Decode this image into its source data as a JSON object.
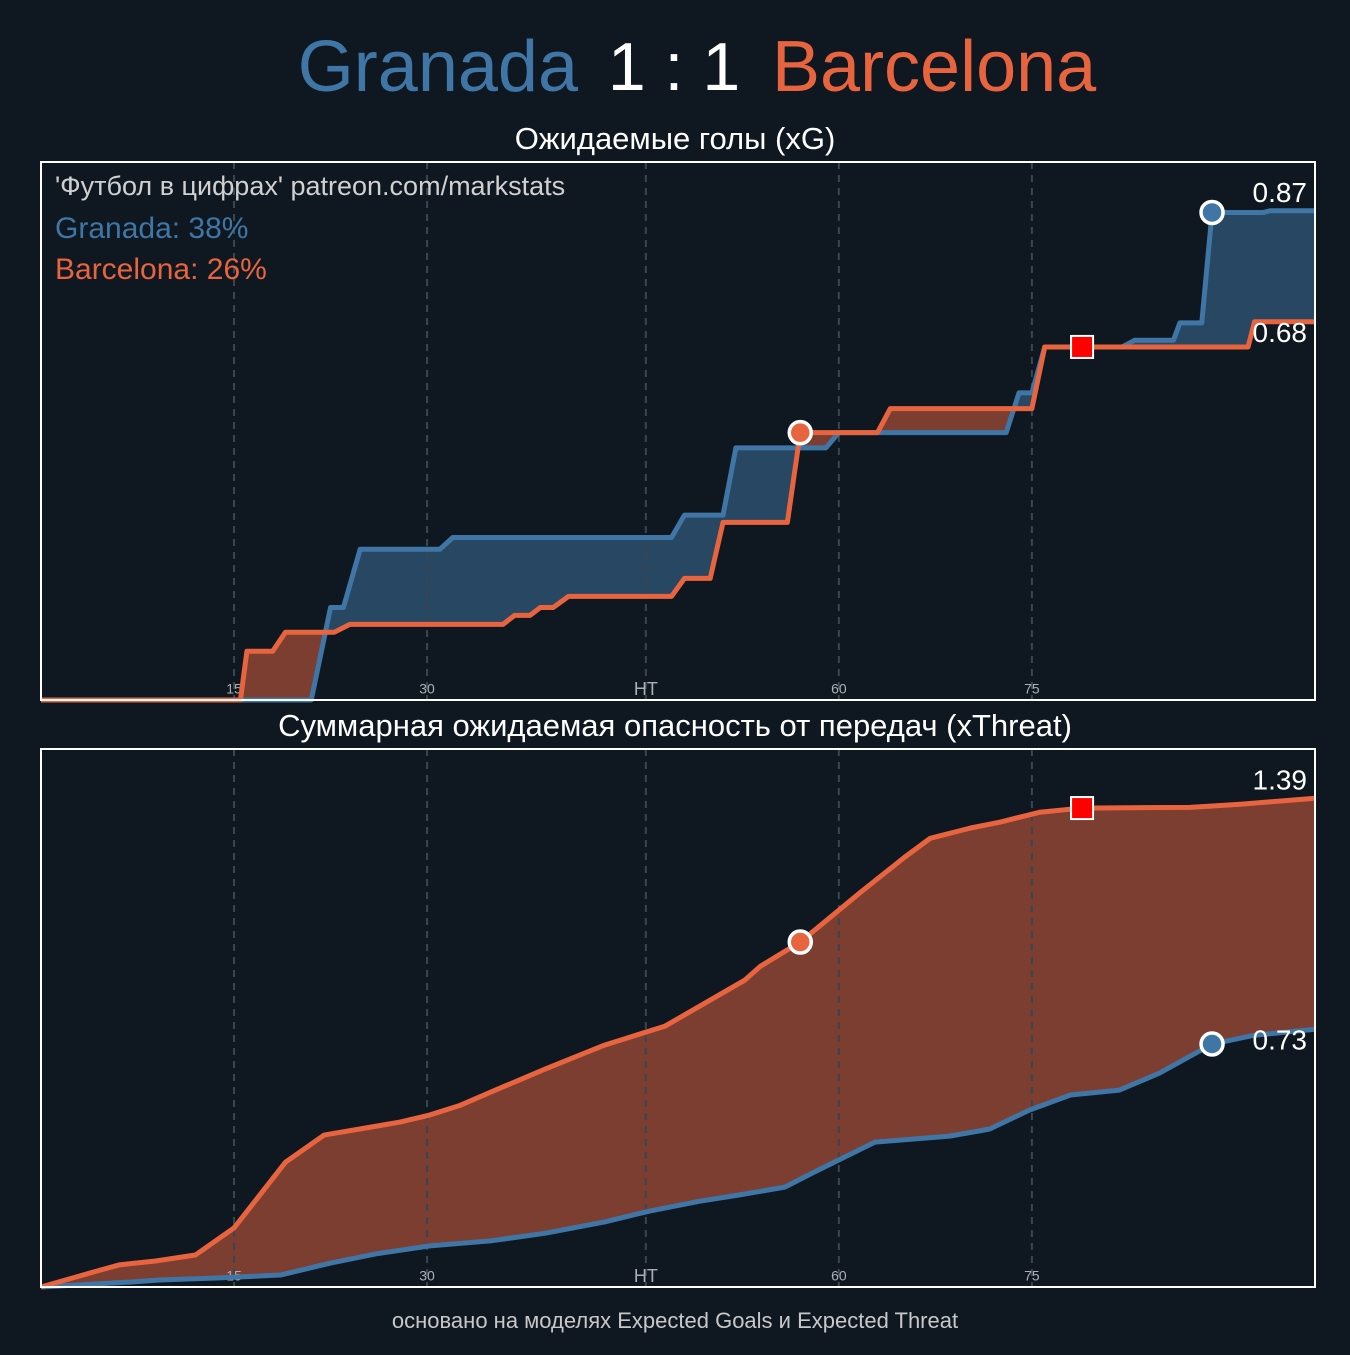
{
  "header": {
    "home": "Granada",
    "score": "1 : 1",
    "away": "Barcelona"
  },
  "footer": "основано на моделях Expected Goals и Expected Threat",
  "chart_data": [
    {
      "type": "line",
      "title": "Ожидаемые голы (xG)",
      "annotation": "'Футбол в цифрах' patreon.com/markstats",
      "xlim": [
        0,
        99
      ],
      "ylim": [
        0,
        0.96
      ],
      "xticks": [
        15,
        30,
        {
          "value": 47,
          "label": "HT"
        },
        {
          "value": 62,
          "label": "60"
        },
        {
          "value": 77,
          "label": "75"
        }
      ],
      "grid": true,
      "fill_between": true,
      "series": [
        {
          "label": "Granada: 38%",
          "color": "#3f76a6",
          "end_label": "0.87",
          "x": [
            0,
            21,
            22.5,
            23.5,
            24.8,
            31,
            32,
            49,
            50,
            53,
            54,
            61,
            62,
            75,
            76,
            77,
            78,
            84,
            85,
            88,
            88.5,
            90.2,
            91,
            95,
            95.5,
            99
          ],
          "values": [
            0,
            0,
            0.165,
            0.165,
            0.269,
            0.269,
            0.29,
            0.29,
            0.33,
            0.33,
            0.45,
            0.45,
            0.477,
            0.477,
            0.548,
            0.548,
            0.63,
            0.63,
            0.642,
            0.642,
            0.673,
            0.673,
            0.87,
            0.87,
            0.873,
            0.873
          ]
        },
        {
          "label": "Barcelona: 26%",
          "color": "#e8643f",
          "end_label": "0.68",
          "x": [
            0,
            15.5,
            16,
            18,
            19,
            22.8,
            24,
            35.9,
            36.8,
            38,
            38.8,
            39.8,
            41,
            49,
            50,
            52,
            53,
            58,
            59,
            65,
            66,
            77,
            78,
            93.8,
            94.3,
            99
          ],
          "values": [
            0,
            0,
            0.087,
            0.087,
            0.121,
            0.121,
            0.135,
            0.135,
            0.151,
            0.151,
            0.165,
            0.165,
            0.185,
            0.185,
            0.217,
            0.217,
            0.317,
            0.317,
            0.477,
            0.477,
            0.52,
            0.52,
            0.63,
            0.63,
            0.675,
            0.675
          ]
        }
      ],
      "events": [
        {
          "x": 59,
          "series": 1,
          "shape": "circle"
        },
        {
          "x": 80.9,
          "series": 1,
          "shape": "square",
          "color": "#ff0000"
        },
        {
          "x": 91,
          "series": 0,
          "shape": "circle"
        }
      ]
    },
    {
      "type": "line",
      "title": "Суммарная ожидаемая опасность от передач (xThreat)",
      "xlim": [
        0,
        99
      ],
      "ylim": [
        0,
        1.53
      ],
      "xticks": [
        15,
        30,
        {
          "value": 47,
          "label": "HT"
        },
        {
          "value": 62,
          "label": "60"
        },
        {
          "value": 77,
          "label": "75"
        }
      ],
      "grid": true,
      "fill_between": true,
      "series": [
        {
          "color": "#3f76a6",
          "end_label": "0.73",
          "x": [
            0,
            6.9,
            9.2,
            13.9,
            18.6,
            22.5,
            26,
            30.2,
            34.9,
            39.2,
            43.8,
            47.3,
            51.2,
            54.3,
            57.8,
            60.1,
            64.8,
            70.6,
            73.7,
            76.8,
            80,
            83.8,
            86.9,
            91,
            94.3,
            99
          ],
          "values": [
            0,
            0.014,
            0.02,
            0.026,
            0.034,
            0.068,
            0.094,
            0.117,
            0.131,
            0.153,
            0.185,
            0.216,
            0.244,
            0.262,
            0.284,
            0.327,
            0.412,
            0.429,
            0.449,
            0.503,
            0.546,
            0.56,
            0.608,
            0.691,
            0.716,
            0.733
          ]
        },
        {
          "color": "#e8643f",
          "end_label": "1.39",
          "x": [
            0,
            4.6,
            6.1,
            8.9,
            12,
            15,
            19,
            22,
            27.9,
            30.2,
            32.6,
            35.7,
            39.2,
            43.8,
            48.5,
            51.2,
            54.7,
            55.9,
            59,
            63.6,
            67.1,
            69.1,
            72.2,
            74.5,
            77.6,
            80.9,
            89.3,
            93.2,
            99
          ],
          "values": [
            0,
            0.048,
            0.063,
            0.074,
            0.091,
            0.168,
            0.355,
            0.432,
            0.469,
            0.489,
            0.517,
            0.566,
            0.62,
            0.688,
            0.742,
            0.799,
            0.873,
            0.912,
            0.981,
            1.12,
            1.222,
            1.276,
            1.305,
            1.322,
            1.35,
            1.362,
            1.364,
            1.373,
            1.39
          ]
        }
      ],
      "events": [
        {
          "x": 59,
          "series": 1,
          "shape": "circle"
        },
        {
          "x": 80.9,
          "series": 1,
          "shape": "square",
          "color": "#ff0000"
        },
        {
          "x": 91,
          "series": 0,
          "shape": "circle"
        }
      ]
    }
  ]
}
